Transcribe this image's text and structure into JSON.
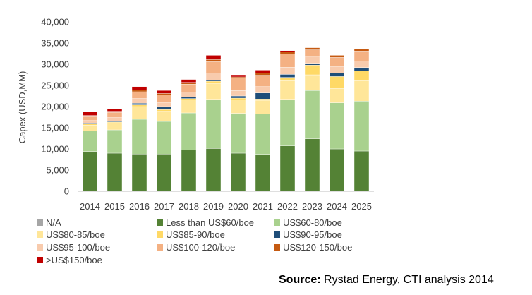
{
  "chart_data": {
    "type": "bar",
    "stacked": true,
    "title": "",
    "xlabel": "",
    "ylabel": "Capex (USD,MM)",
    "ylim": [
      0,
      40000
    ],
    "yticks": [
      "0",
      "5,000",
      "10,000",
      "15,000",
      "20,000",
      "25,000",
      "30,000",
      "35,000",
      "40,000"
    ],
    "grid": false,
    "legend_position": "bottom-left",
    "categories": [
      "2014",
      "2015",
      "2016",
      "2017",
      "2018",
      "2019",
      "2020",
      "2021",
      "2022",
      "2023",
      "2024",
      "2025"
    ],
    "series": [
      {
        "name": "N/A",
        "color": "#a6a6a6",
        "values": [
          0,
          0,
          0,
          0,
          0,
          0,
          0,
          0,
          0,
          0,
          0,
          0
        ]
      },
      {
        "name": "Less than US$60/boe",
        "color": "#548235",
        "values": [
          9400,
          9000,
          8800,
          8800,
          9700,
          10100,
          9000,
          8700,
          10700,
          12400,
          10000,
          9500
        ]
      },
      {
        "name": "US$60-80/boe",
        "color": "#a9d18e",
        "values": [
          4900,
          5500,
          8200,
          7700,
          8800,
          11600,
          9400,
          9600,
          11000,
          11400,
          10900,
          11800
        ]
      },
      {
        "name": "US$80-85/boe",
        "color": "#ffe699",
        "values": [
          1300,
          1700,
          3000,
          2400,
          3100,
          3800,
          3200,
          3200,
          4400,
          3700,
          3400,
          4800
        ]
      },
      {
        "name": "US$85-90/boe",
        "color": "#ffd966",
        "values": [
          300,
          200,
          400,
          400,
          300,
          500,
          400,
          300,
          800,
          2300,
          2800,
          2300
        ]
      },
      {
        "name": "US$90-95/boe",
        "color": "#1f4e79",
        "values": [
          200,
          200,
          400,
          700,
          300,
          300,
          500,
          1400,
          700,
          400,
          800,
          800
        ]
      },
      {
        "name": "US$95-100/boe",
        "color": "#f8cbad",
        "values": [
          600,
          800,
          1100,
          1000,
          1200,
          1600,
          1300,
          1500,
          1700,
          1500,
          1600,
          1500
        ]
      },
      {
        "name": "US$100-120/boe",
        "color": "#f4b183",
        "values": [
          900,
          1200,
          1600,
          1700,
          1900,
          2700,
          2900,
          2700,
          3100,
          1700,
          2100,
          2400
        ]
      },
      {
        "name": "US$120-150/boe",
        "color": "#c55a11",
        "values": [
          300,
          300,
          400,
          400,
          400,
          500,
          300,
          500,
          500,
          500,
          500,
          500
        ]
      },
      {
        "name": ">US$150/boe",
        "color": "#c00000",
        "values": [
          900,
          500,
          800,
          700,
          700,
          1000,
          500,
          700,
          300,
          0,
          0,
          0
        ]
      }
    ]
  },
  "source": {
    "label": "Source:",
    "text": " Rystad Energy, CTI analysis 2014"
  }
}
